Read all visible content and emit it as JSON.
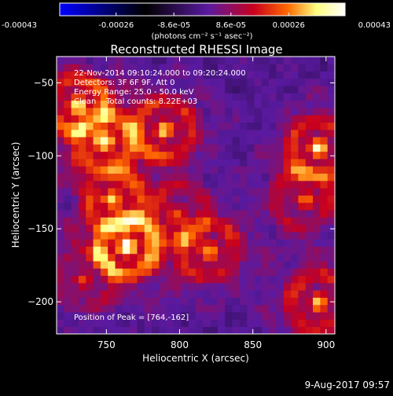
{
  "colorbar": {
    "tick_labels": [
      "-0.00043",
      "-0.00026",
      "-8.6e-05",
      "8.6e-05",
      "0.00026",
      "0.00043"
    ],
    "tick_values": [
      -0.00043,
      -0.00026,
      -8.6e-05,
      8.6e-05,
      0.00026,
      0.00043
    ],
    "range": [
      -0.00043,
      0.00043
    ],
    "unit_label": "(photons cm⁻² s⁻¹ asec⁻²)"
  },
  "chart_data": {
    "type": "heatmap",
    "title": "Reconstructed RHESSI Image",
    "xlabel": "Heliocentric X (arcsec)",
    "ylabel": "Heliocentric Y (arcsec)",
    "xlim": [
      716,
      906
    ],
    "ylim": [
      -222,
      -32
    ],
    "x_ticks": [
      750,
      800,
      850,
      900
    ],
    "y_ticks": [
      -50,
      -100,
      -150,
      -200
    ],
    "annotations": [
      "22-Nov-2014 09:10:24.000 to 09:20:24.000",
      "Detectors: 3F 6F 9F, Att 0",
      "Energy Range: 25.0 - 50.0 keV",
      "Clean    Total counts: 8.22E+03"
    ],
    "peak_label": "Position of Peak = [764,-162]",
    "peak": [
      764,
      -162
    ],
    "colormap": [
      "#0000ff",
      "#000000",
      "#5a1aa0",
      "#c8001e",
      "#ff6a00",
      "#ffff80",
      "#ffffff"
    ],
    "sources": [
      {
        "x": 764,
        "y": -162,
        "amp": 1.0
      },
      {
        "x": 730,
        "y": -65,
        "amp": 0.8
      },
      {
        "x": 748,
        "y": -90,
        "amp": 0.75
      },
      {
        "x": 790,
        "y": -82,
        "amp": 0.75
      },
      {
        "x": 755,
        "y": -130,
        "amp": 0.6
      },
      {
        "x": 820,
        "y": -165,
        "amp": 0.65
      },
      {
        "x": 895,
        "y": -95,
        "amp": 0.8
      },
      {
        "x": 895,
        "y": -200,
        "amp": 0.75
      },
      {
        "x": 885,
        "y": -130,
        "amp": 0.5
      },
      {
        "x": 735,
        "y": -185,
        "amp": 0.35
      },
      {
        "x": 800,
        "y": -140,
        "amp": 0.4
      }
    ]
  },
  "footer": {
    "date_stamp": "9-Aug-2017 09:57"
  }
}
